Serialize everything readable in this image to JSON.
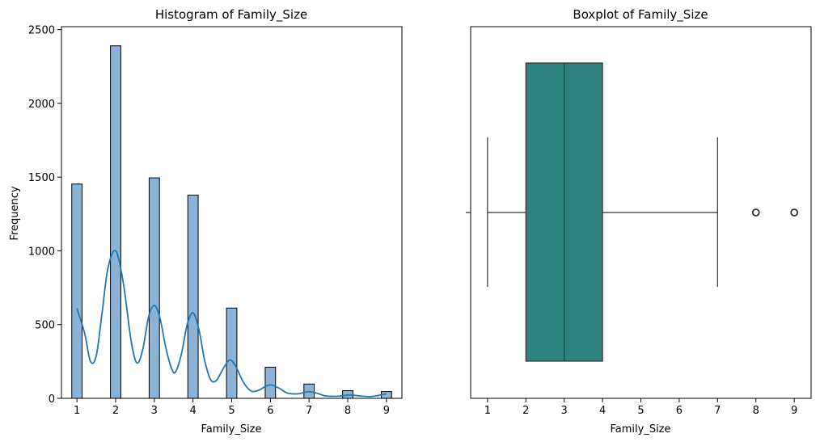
{
  "chart_data": [
    {
      "type": "bar",
      "title": "Histogram of Family_Size",
      "xlabel": "Family_Size",
      "ylabel": "Frequency",
      "xlim": [
        0.6,
        9.4
      ],
      "ylim": [
        0,
        2520
      ],
      "xticks": [
        1,
        2,
        3,
        4,
        5,
        6,
        7,
        8,
        9
      ],
      "yticks": [
        0,
        500,
        1000,
        1500,
        2000,
        2500
      ],
      "bar_width": 0.267,
      "bars": [
        {
          "x": 1,
          "value": 1453
        },
        {
          "x": 2,
          "value": 2390
        },
        {
          "x": 3,
          "value": 1495
        },
        {
          "x": 4,
          "value": 1378
        },
        {
          "x": 5,
          "value": 612
        },
        {
          "x": 6,
          "value": 211
        },
        {
          "x": 7,
          "value": 97
        },
        {
          "x": 8,
          "value": 52
        },
        {
          "x": 9,
          "value": 46
        }
      ],
      "kde": [
        [
          1.0,
          610
        ],
        [
          1.2,
          440
        ],
        [
          1.35,
          250
        ],
        [
          1.5,
          290
        ],
        [
          1.65,
          580
        ],
        [
          1.8,
          880
        ],
        [
          2.0,
          1000
        ],
        [
          2.2,
          780
        ],
        [
          2.4,
          390
        ],
        [
          2.55,
          240
        ],
        [
          2.7,
          330
        ],
        [
          2.85,
          550
        ],
        [
          3.0,
          630
        ],
        [
          3.15,
          540
        ],
        [
          3.3,
          340
        ],
        [
          3.45,
          200
        ],
        [
          3.55,
          180
        ],
        [
          3.7,
          300
        ],
        [
          3.85,
          500
        ],
        [
          4.0,
          580
        ],
        [
          4.15,
          470
        ],
        [
          4.3,
          260
        ],
        [
          4.45,
          130
        ],
        [
          4.6,
          120
        ],
        [
          4.8,
          210
        ],
        [
          4.95,
          260
        ],
        [
          5.1,
          220
        ],
        [
          5.3,
          110
        ],
        [
          5.5,
          50
        ],
        [
          5.7,
          55
        ],
        [
          5.9,
          85
        ],
        [
          6.05,
          90
        ],
        [
          6.25,
          65
        ],
        [
          6.45,
          35
        ],
        [
          6.7,
          30
        ],
        [
          6.85,
          38
        ],
        [
          7.0,
          45
        ],
        [
          7.2,
          35
        ],
        [
          7.4,
          18
        ],
        [
          7.6,
          14
        ],
        [
          7.8,
          15
        ],
        [
          8.0,
          22
        ],
        [
          8.2,
          20
        ],
        [
          8.4,
          14
        ],
        [
          8.6,
          12
        ],
        [
          8.8,
          20
        ],
        [
          9.0,
          30
        ]
      ],
      "colors": {
        "bar_fill": "#8cb3d5",
        "bar_edge": "#000000",
        "kde_line": "#1f77b4"
      }
    },
    {
      "type": "boxplot",
      "title": "Boxplot of Family_Size",
      "xlabel": "Family_Size",
      "xlim": [
        0.56,
        9.44
      ],
      "xticks": [
        1,
        2,
        3,
        4,
        5,
        6,
        7,
        8,
        9
      ],
      "box": {
        "whisker_low": 1,
        "q1": 2,
        "median": 3,
        "q3": 4,
        "whisker_high": 7
      },
      "outliers": [
        8,
        9
      ],
      "colors": {
        "box_fill": "#2c837d",
        "line": "#333333"
      }
    }
  ]
}
